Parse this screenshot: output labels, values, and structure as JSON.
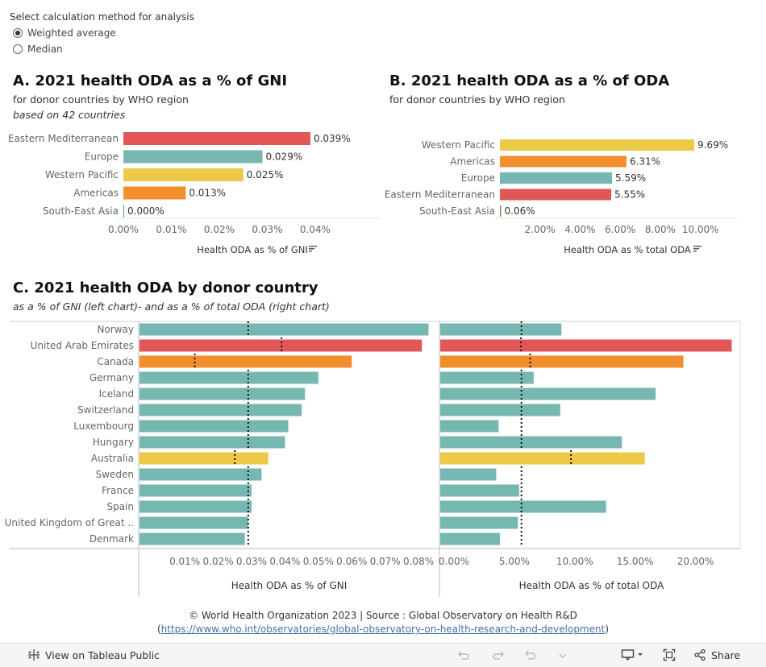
{
  "controls": {
    "title": "Select calculation method for analysis",
    "options": [
      "Weighted average",
      "Median"
    ],
    "selected": "Weighted average"
  },
  "panelA": {
    "title": "A. 2021 health ODA as a % of GNI",
    "subtitle": "for donor countries by WHO region",
    "note": "based on  42 countries"
  },
  "panelB": {
    "title": "B. 2021 health ODA as a % of ODA",
    "subtitle": "for donor countries by WHO region"
  },
  "panelC": {
    "title": "C. 2021 health ODA by donor country",
    "subtitle": "as a % of GNI  (left chart)- and as a % of total ODA (right chart)"
  },
  "colors": {
    "Eastern Mediterranean": "#e15759",
    "Europe": "#76b7b2",
    "Western Pacific": "#edc948",
    "Americas": "#f28e2b",
    "South-East Asia": "#59a14f"
  },
  "chart_data": [
    {
      "id": "A",
      "type": "bar",
      "orientation": "horizontal",
      "categories": [
        "Eastern Mediterranean",
        "Europe",
        "Western Pacific",
        "Americas",
        "South-East Asia"
      ],
      "values": [
        0.039,
        0.029,
        0.025,
        0.013,
        0.0
      ],
      "labels": [
        "0.039%",
        "0.029%",
        "0.025%",
        "0.013%",
        "0.000%"
      ],
      "xlabel": "Health ODA as % of GNI",
      "xlim": [
        0,
        0.0533
      ],
      "ticks": [
        0,
        0.01,
        0.02,
        0.03,
        0.04
      ],
      "tick_labels": [
        "0.00%",
        "0.01%",
        "0.02%",
        "0.03%",
        "0.04%"
      ]
    },
    {
      "id": "B",
      "type": "bar",
      "orientation": "horizontal",
      "categories": [
        "Western Pacific",
        "Americas",
        "Europe",
        "Eastern Mediterranean",
        "South-East Asia"
      ],
      "values": [
        9.69,
        6.31,
        5.59,
        5.55,
        0.06
      ],
      "labels": [
        "9.69%",
        "6.31%",
        "5.59%",
        "5.55%",
        "0.06%"
      ],
      "xlabel": "Health ODA as % total ODA",
      "xlim": [
        0,
        11.7
      ],
      "ticks": [
        2,
        4,
        6,
        8,
        10
      ],
      "tick_labels": [
        "2.00%",
        "4.00%",
        "6.00%",
        "8.00%",
        "10.00%"
      ]
    },
    {
      "id": "C",
      "type": "bar",
      "orientation": "horizontal",
      "categories": [
        "Norway",
        "United Arab Emirates",
        "Canada",
        "Germany",
        "Iceland",
        "Switzerland",
        "Luxembourg",
        "Hungary",
        "Australia",
        "Sweden",
        "France",
        "Spain",
        "United Kingdom of Great ..",
        "Denmark"
      ],
      "regions": [
        "Europe",
        "Eastern Mediterranean",
        "Americas",
        "Europe",
        "Europe",
        "Europe",
        "Europe",
        "Europe",
        "Western Pacific",
        "Europe",
        "Europe",
        "Europe",
        "Europe",
        "Europe"
      ],
      "left": {
        "xlabel": "Health ODA as % of GNI",
        "values": [
          0.083,
          0.081,
          0.06,
          0.05,
          0.046,
          0.045,
          0.041,
          0.04,
          0.035,
          0.033,
          0.03,
          0.03,
          0.029,
          0.028
        ],
        "reference": [
          0.029,
          0.039,
          0.013,
          0.029,
          0.029,
          0.029,
          0.029,
          0.029,
          0.025,
          0.029,
          0.029,
          0.029,
          0.029,
          0.029
        ],
        "xlim": [
          -0.0038,
          0.0853
        ],
        "ticks": [
          0.01,
          0.02,
          0.03,
          0.04,
          0.05,
          0.06,
          0.07,
          0.08
        ],
        "tick_labels": [
          "0.01%",
          "0.02%",
          "0.03%",
          "0.04%",
          "0.05%",
          "0.06%",
          "0.07%",
          "0.08%"
        ]
      },
      "right": {
        "xlabel": "Health ODA as % of total ODA",
        "values": [
          8.9,
          23.0,
          19.0,
          6.6,
          16.7,
          8.8,
          3.7,
          13.9,
          15.8,
          3.5,
          5.4,
          12.6,
          5.3,
          3.8
        ],
        "reference": [
          5.59,
          5.55,
          6.31,
          5.59,
          5.59,
          5.59,
          5.59,
          5.59,
          9.69,
          5.59,
          5.59,
          5.59,
          5.59,
          5.59
        ],
        "xlim": [
          -1.2,
          23.7
        ],
        "ticks": [
          0,
          5,
          10,
          15,
          20
        ],
        "tick_labels": [
          "0.00%",
          "5.00%",
          "10.00%",
          "15.00%",
          "20.00%"
        ]
      }
    }
  ],
  "credit": {
    "line1": "© World Health Organization 2023 | Source : Global Observatory on Health R&D",
    "open": "(",
    "link": "https://www.who.int/observatories/global-observatory-on-health-research-and-development",
    "close": ")"
  },
  "toolbar": {
    "view_label": "View on Tableau Public",
    "share_label": "Share"
  }
}
